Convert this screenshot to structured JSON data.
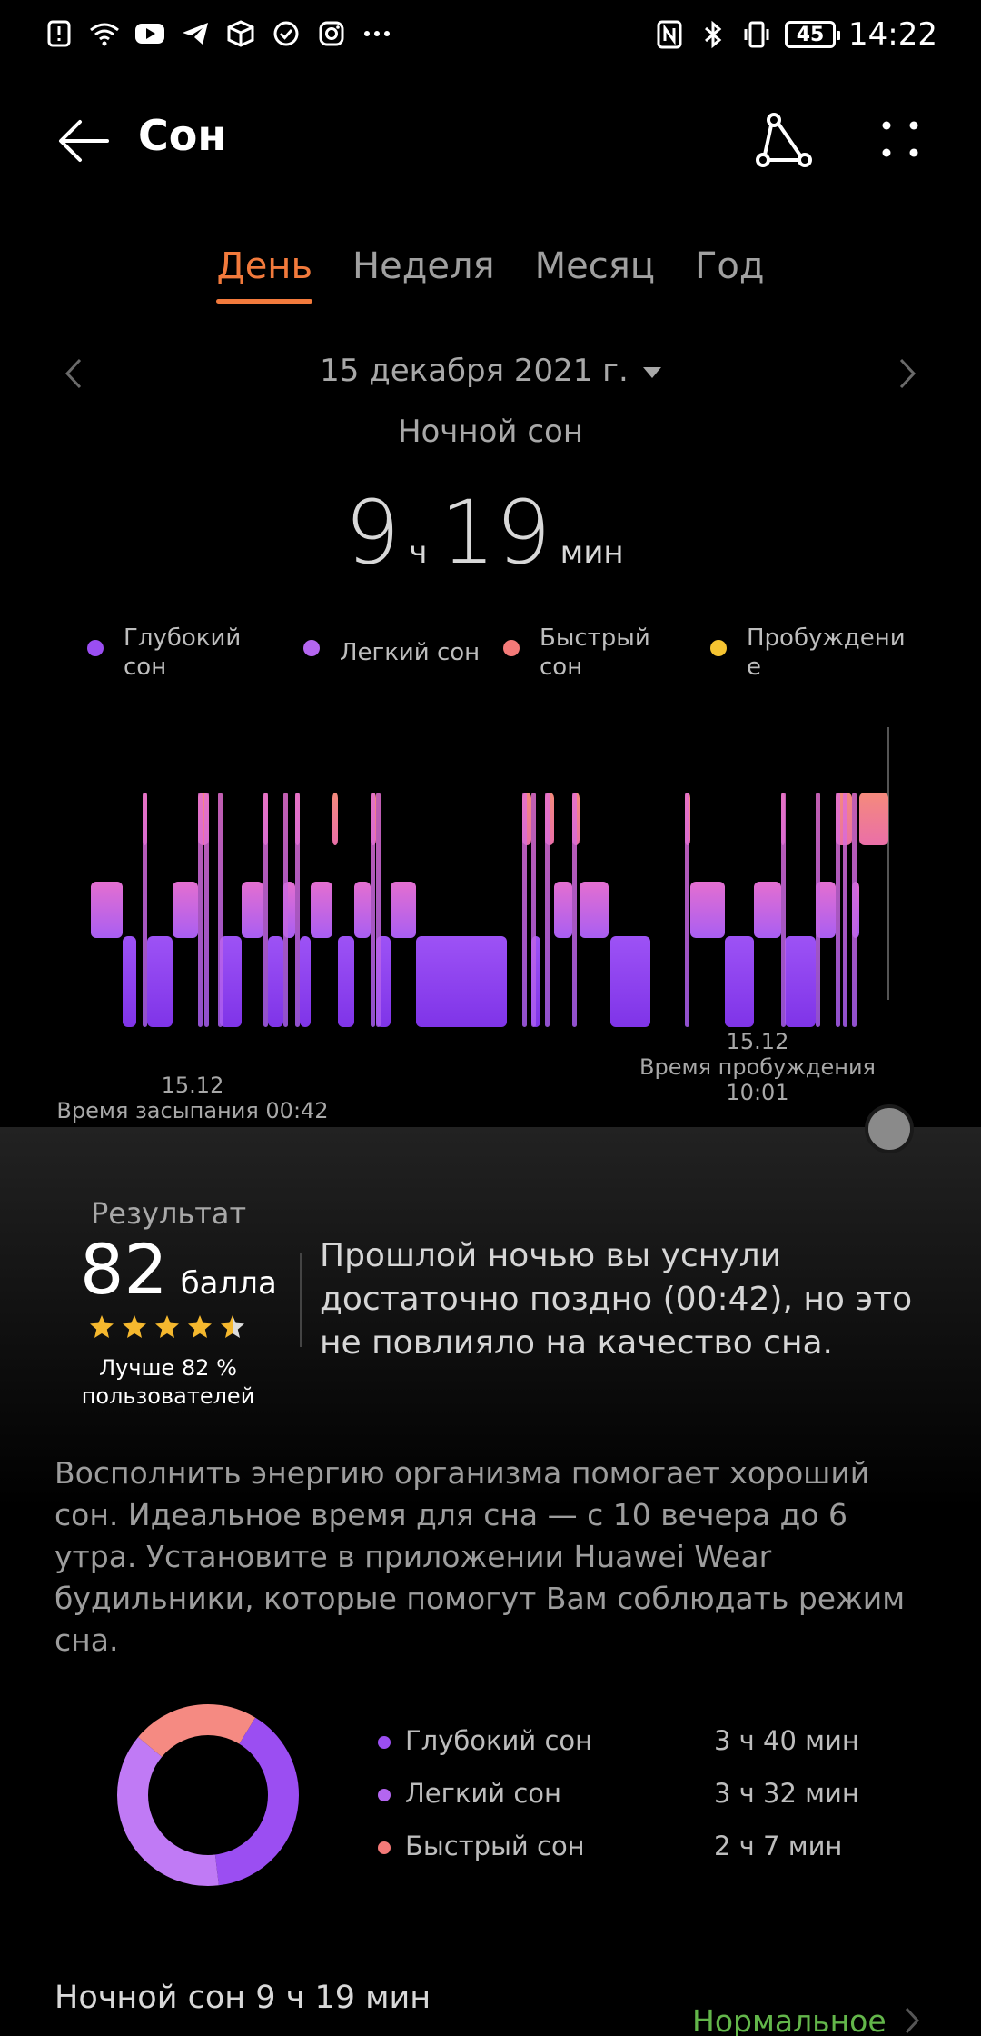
{
  "status_bar": {
    "time": "14:22",
    "battery": "45",
    "left_icons": [
      "alert-icon",
      "wifi-icon",
      "youtube-icon",
      "telegram-icon",
      "cube-icon",
      "check-icon",
      "instagram-icon",
      "more-dots-icon"
    ],
    "right_icons": [
      "nfc-icon",
      "bluetooth-icon",
      "vibrate-icon",
      "battery-icon"
    ]
  },
  "header": {
    "title": "Сон"
  },
  "tabs": [
    {
      "label": "День",
      "active": true
    },
    {
      "label": "Неделя",
      "active": false
    },
    {
      "label": "Месяц",
      "active": false
    },
    {
      "label": "Год",
      "active": false
    }
  ],
  "date": {
    "label": "15 декабря 2021 г."
  },
  "summary": {
    "subtitle": "Ночной сон",
    "hours": "9",
    "hours_unit": "ч",
    "minutes": "19",
    "minutes_unit": "мин"
  },
  "legend": [
    {
      "label": "Глубокий\nсон",
      "color": "#9b4ef2"
    },
    {
      "label": "Легкий сон",
      "color": "#b466f0"
    },
    {
      "label": "Быстрый\nсон",
      "color": "#f47a78"
    },
    {
      "label": "Пробуждени\nе",
      "color": "#f5c431"
    }
  ],
  "hypnogram": {
    "sleep_date": "15.12",
    "sleep_label": "Время засыпания 00:42",
    "wake_date": "15.12",
    "wake_label": "Время пробуждения 10:01"
  },
  "result": {
    "label": "Результат",
    "score": "82",
    "score_unit": "балла",
    "stars": 4.5,
    "better_than": "Лучше 82 %\nпользователей",
    "verdict": "Прошлой ночью вы уснули достаточно поздно (00:42), но это не повлияло на качество сна.",
    "advice": "Восполнить энергию организма помогает хороший сон. Идеальное время для сна — с 10 вечера до 6 утра. Установите в приложении Huawei Wear будильники, которые помогут Вам соблюдать режим сна."
  },
  "breakdown": [
    {
      "label": "Глубокий сон",
      "value": "3 ч 40 мин",
      "minutes": 220,
      "color": "#9b4ef2"
    },
    {
      "label": "Легкий сон",
      "value": "3 ч 32 мин",
      "minutes": 212,
      "color": "#b466f0"
    },
    {
      "label": "Быстрый сон",
      "value": "2 ч 7 мин",
      "minutes": 127,
      "color": "#f47a78"
    }
  ],
  "footer": {
    "title": "Ночной сон  9 ч 19 мин",
    "status": "Нормальное"
  }
}
